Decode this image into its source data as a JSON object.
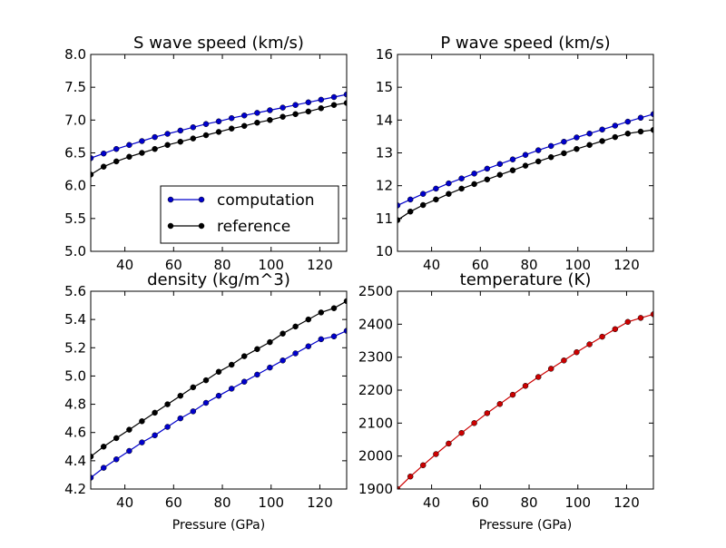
{
  "colors": {
    "blue": "#0000cc",
    "black": "#000000",
    "red": "#cc0000"
  },
  "chart_data": [
    {
      "type": "line",
      "title": "S wave speed (km/s)",
      "xlabel": "",
      "ylabel": "",
      "xlim": [
        26,
        131
      ],
      "ylim": [
        5.0,
        8.0
      ],
      "xticks": [
        "40",
        "60",
        "80",
        "100",
        "120"
      ],
      "yticks": [
        "5.0",
        "5.5",
        "6.0",
        "6.5",
        "7.0",
        "7.5",
        "8.0"
      ],
      "legend": {
        "position": "lower-right",
        "entries": [
          "computation",
          "reference"
        ]
      },
      "x": [
        26,
        31.3,
        36.5,
        41.8,
        47,
        52.3,
        57.5,
        62.8,
        68,
        73.3,
        78.5,
        83.8,
        89,
        94.3,
        99.5,
        104.8,
        110,
        115.3,
        120.5,
        125.8,
        131
      ],
      "series": [
        {
          "name": "computation",
          "color": "blue",
          "values": [
            6.42,
            6.49,
            6.56,
            6.62,
            6.68,
            6.74,
            6.79,
            6.84,
            6.89,
            6.94,
            6.98,
            7.03,
            7.07,
            7.11,
            7.15,
            7.19,
            7.23,
            7.27,
            7.31,
            7.35,
            7.39
          ]
        },
        {
          "name": "reference",
          "color": "black",
          "values": [
            6.17,
            6.29,
            6.37,
            6.44,
            6.5,
            6.56,
            6.62,
            6.67,
            6.72,
            6.77,
            6.82,
            6.87,
            6.91,
            6.96,
            7.0,
            7.05,
            7.09,
            7.13,
            7.18,
            7.23,
            7.26
          ]
        }
      ]
    },
    {
      "type": "line",
      "title": "P wave speed (km/s)",
      "xlabel": "",
      "ylabel": "",
      "xlim": [
        26,
        131
      ],
      "ylim": [
        10,
        16
      ],
      "xticks": [
        "40",
        "60",
        "80",
        "100",
        "120"
      ],
      "yticks": [
        "10",
        "11",
        "12",
        "13",
        "14",
        "15",
        "16"
      ],
      "x": [
        26,
        31.3,
        36.5,
        41.8,
        47,
        52.3,
        57.5,
        62.8,
        68,
        73.3,
        78.5,
        83.8,
        89,
        94.3,
        99.5,
        104.8,
        110,
        115.3,
        120.5,
        125.8,
        131
      ],
      "series": [
        {
          "name": "computation",
          "color": "blue",
          "values": [
            11.4,
            11.58,
            11.75,
            11.91,
            12.07,
            12.22,
            12.37,
            12.52,
            12.66,
            12.8,
            12.94,
            13.08,
            13.21,
            13.34,
            13.47,
            13.59,
            13.71,
            13.83,
            13.95,
            14.07,
            14.18
          ]
        },
        {
          "name": "reference",
          "color": "black",
          "values": [
            10.95,
            11.21,
            11.41,
            11.58,
            11.75,
            11.91,
            12.05,
            12.19,
            12.33,
            12.47,
            12.61,
            12.74,
            12.87,
            12.99,
            13.12,
            13.24,
            13.36,
            13.48,
            13.59,
            13.65,
            13.7
          ]
        }
      ]
    },
    {
      "type": "line",
      "title": "density (kg/m^3)",
      "xlabel": "Pressure (GPa)",
      "ylabel": "",
      "xlim": [
        26,
        131
      ],
      "ylim": [
        4.2,
        5.6
      ],
      "xticks": [
        "40",
        "60",
        "80",
        "100",
        "120"
      ],
      "yticks": [
        "4.2",
        "4.4",
        "4.6",
        "4.8",
        "5.0",
        "5.2",
        "5.4",
        "5.6"
      ],
      "x": [
        26,
        31.3,
        36.5,
        41.8,
        47,
        52.3,
        57.5,
        62.8,
        68,
        73.3,
        78.5,
        83.8,
        89,
        94.3,
        99.5,
        104.8,
        110,
        115.3,
        120.5,
        125.8,
        131
      ],
      "series": [
        {
          "name": "computation",
          "color": "blue",
          "values": [
            4.28,
            4.35,
            4.41,
            4.47,
            4.53,
            4.58,
            4.64,
            4.7,
            4.75,
            4.81,
            4.86,
            4.91,
            4.96,
            5.01,
            5.06,
            5.11,
            5.16,
            5.21,
            5.26,
            5.28,
            5.32
          ]
        },
        {
          "name": "reference",
          "color": "black",
          "values": [
            4.43,
            4.5,
            4.56,
            4.62,
            4.68,
            4.74,
            4.8,
            4.86,
            4.92,
            4.97,
            5.03,
            5.08,
            5.14,
            5.19,
            5.24,
            5.3,
            5.35,
            5.4,
            5.45,
            5.48,
            5.53
          ]
        }
      ]
    },
    {
      "type": "line",
      "title": "temperature (K)",
      "xlabel": "Pressure (GPa)",
      "ylabel": "",
      "xlim": [
        26,
        131
      ],
      "ylim": [
        1900,
        2500
      ],
      "xticks": [
        "40",
        "60",
        "80",
        "100",
        "120"
      ],
      "yticks": [
        "1900",
        "2000",
        "2100",
        "2200",
        "2300",
        "2400",
        "2500"
      ],
      "x": [
        26,
        31.3,
        36.5,
        41.8,
        47,
        52.3,
        57.5,
        62.8,
        68,
        73.3,
        78.5,
        83.8,
        89,
        94.3,
        99.5,
        104.8,
        110,
        115.3,
        120.5,
        125.8,
        131
      ],
      "series": [
        {
          "name": "",
          "color": "red",
          "values": [
            1900,
            1938,
            1972,
            2006,
            2038,
            2070,
            2100,
            2130,
            2158,
            2186,
            2213,
            2240,
            2265,
            2290,
            2315,
            2339,
            2362,
            2385,
            2407,
            2419,
            2430
          ]
        }
      ]
    }
  ]
}
